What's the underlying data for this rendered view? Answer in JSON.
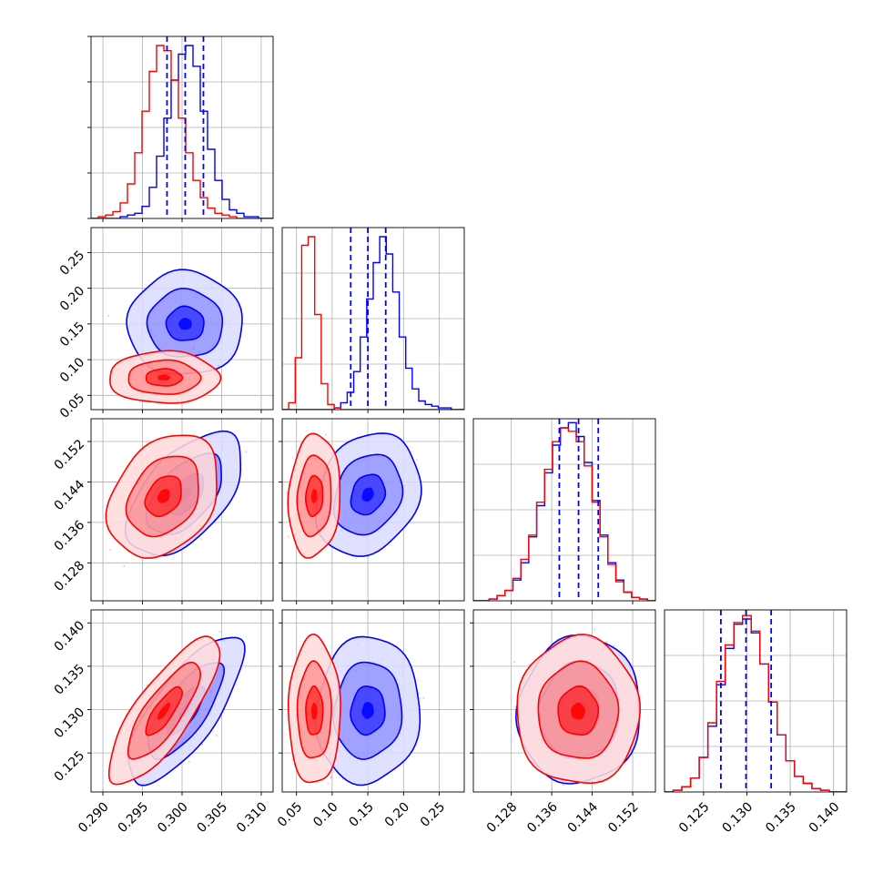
{
  "chart_data": {
    "type": "corner",
    "description_free": true,
    "grid": true,
    "colors": {
      "blue": "#0000ff",
      "red": "#ff0000"
    },
    "parameters": [
      {
        "range": [
          0.2885,
          0.3115
        ],
        "ticks": [
          "0.290",
          "0.295",
          "0.300",
          "0.305",
          "0.310"
        ],
        "tick_values": [
          0.29,
          0.295,
          0.3,
          0.305,
          0.31
        ]
      },
      {
        "range": [
          0.03,
          0.285
        ],
        "ticks": [
          "0.05",
          "0.10",
          "0.15",
          "0.20",
          "0.25"
        ],
        "tick_values": [
          0.05,
          0.1,
          0.15,
          0.2,
          0.25
        ]
      },
      {
        "range": [
          0.1205,
          0.1565
        ],
        "ticks": [
          "0.128",
          "0.136",
          "0.144",
          "0.152"
        ],
        "tick_values": [
          0.128,
          0.136,
          0.144,
          0.152
        ]
      },
      {
        "range": [
          0.1205,
          0.1415
        ],
        "ticks": [
          "0.125",
          "0.130",
          "0.135",
          "0.140"
        ],
        "tick_values": [
          0.125,
          0.13,
          0.135,
          0.14
        ]
      }
    ],
    "series": [
      {
        "color": "#0000ff",
        "means": [
          0.3004,
          0.15,
          0.1415,
          0.1299
        ],
        "sigmas": [
          0.0024,
          0.024,
          0.004,
          0.0028
        ],
        "correlations": [
          [
            1,
            0,
            0.55,
            0.75
          ],
          [
            0,
            1,
            0.2,
            0.05
          ],
          [
            0.55,
            0.2,
            1,
            0.05
          ],
          [
            0.75,
            0.05,
            0.05,
            1
          ]
        ],
        "quantiles": [
          [
            0.2981,
            0.3004,
            0.3027
          ],
          [
            0.126,
            0.15,
            0.175
          ],
          [
            0.1375,
            0.1413,
            0.1452
          ],
          [
            0.127,
            0.1299,
            0.1328
          ]
        ],
        "hist": [
          [
            0,
            0,
            0,
            0,
            0.01,
            0.02,
            0.03,
            0.07,
            0.18,
            0.36,
            0.58,
            0.8,
            0.95,
            1.0,
            0.88,
            0.62,
            0.4,
            0.22,
            0.11,
            0.05,
            0.03,
            0.01,
            0.01,
            0,
            0
          ],
          [
            0,
            0,
            0,
            0,
            0,
            0,
            0,
            0,
            0.01,
            0.04,
            0.1,
            0.22,
            0.42,
            0.64,
            0.85,
            1.0,
            0.9,
            0.68,
            0.42,
            0.24,
            0.12,
            0.05,
            0.03,
            0.02,
            0.01,
            0.01,
            0,
            0
          ],
          [
            0,
            0,
            0.01,
            0.03,
            0.06,
            0.12,
            0.22,
            0.37,
            0.55,
            0.74,
            0.9,
            1.0,
            1.03,
            0.95,
            0.8,
            0.58,
            0.38,
            0.22,
            0.12,
            0.05,
            0.02,
            0.01,
            0
          ],
          [
            0,
            0.01,
            0.03,
            0.08,
            0.2,
            0.38,
            0.62,
            0.83,
            0.97,
            1.0,
            0.92,
            0.74,
            0.52,
            0.33,
            0.18,
            0.09,
            0.05,
            0.02,
            0.01,
            0,
            0
          ]
        ]
      },
      {
        "color": "#ff0000",
        "means": [
          0.2977,
          0.075,
          0.1412,
          0.1298
        ],
        "sigmas": [
          0.0023,
          0.012,
          0.004,
          0.0028
        ],
        "correlations": [
          [
            1,
            0,
            0.3,
            0.8
          ],
          [
            0,
            1,
            0.1,
            0.0
          ],
          [
            0.3,
            0.1,
            1,
            0.0
          ],
          [
            0.8,
            0.0,
            0.0,
            1
          ]
        ],
        "quantiles": [
          [
            0.2954,
            0.2977,
            0.3
          ],
          [
            0.063,
            0.075,
            0.088
          ],
          [
            0.1372,
            0.1412,
            0.1452
          ],
          [
            0.127,
            0.1298,
            0.1326
          ]
        ],
        "hist": [
          [
            0,
            0.01,
            0.02,
            0.04,
            0.09,
            0.2,
            0.38,
            0.62,
            0.85,
            1.0,
            0.97,
            0.8,
            0.58,
            0.38,
            0.22,
            0.12,
            0.06,
            0.03,
            0.02,
            0.01,
            0,
            0,
            0,
            0,
            0
          ],
          [
            0,
            0.04,
            0.3,
            0.95,
            1.0,
            0.55,
            0.15,
            0.03,
            0.01,
            0,
            0,
            0,
            0,
            0,
            0,
            0,
            0,
            0,
            0,
            0,
            0,
            0,
            0,
            0,
            0,
            0,
            0,
            0
          ],
          [
            0,
            0,
            0.01,
            0.03,
            0.06,
            0.13,
            0.24,
            0.38,
            0.57,
            0.76,
            0.92,
            1.0,
            0.98,
            0.92,
            0.78,
            0.57,
            0.37,
            0.21,
            0.11,
            0.05,
            0.02,
            0.01,
            0
          ],
          [
            0,
            0.01,
            0.03,
            0.08,
            0.2,
            0.4,
            0.64,
            0.85,
            0.98,
            1.02,
            0.93,
            0.74,
            0.52,
            0.33,
            0.18,
            0.09,
            0.05,
            0.02,
            0.01,
            0,
            0
          ]
        ]
      }
    ]
  }
}
